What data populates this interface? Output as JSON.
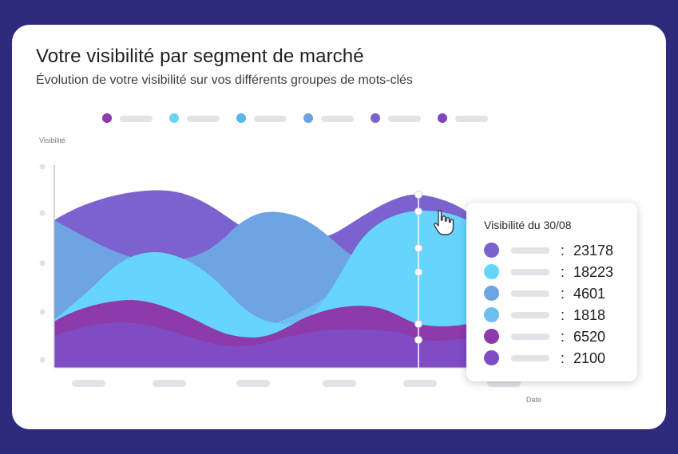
{
  "header": {
    "title": "Votre visibilité par segment de marché",
    "subtitle": "Évolution de votre visibilité sur vos différents groupes de mots-clés"
  },
  "colors": {
    "background": "#2e2a7c",
    "series": [
      "#7b62cf",
      "#66d4fb",
      "#6ea3e4",
      "#6ebff0",
      "#8d3aab",
      "#7f4cc4"
    ],
    "legend": [
      "#8d3aab",
      "#66d4fb",
      "#5ab7ee",
      "#6e9ee3",
      "#7b62cf",
      "#8245be"
    ]
  },
  "chart_data": {
    "type": "area",
    "ylabel": "Visibilité",
    "xlabel": "Date",
    "grid": false,
    "legend_position": "top-left",
    "series": [
      {
        "color": "#7b62cf"
      },
      {
        "color": "#66d4fb"
      },
      {
        "color": "#6ea3e4"
      },
      {
        "color": "#6ebff0"
      },
      {
        "color": "#8d3aab"
      },
      {
        "color": "#7f4cc4"
      }
    ],
    "tooltip": {
      "title": "Visibilité du 30/08",
      "values": [
        "23178",
        "18223",
        "4601",
        "1818",
        "6520",
        "2100"
      ]
    }
  },
  "icons": {
    "cursor": "hand-pointer-icon"
  }
}
